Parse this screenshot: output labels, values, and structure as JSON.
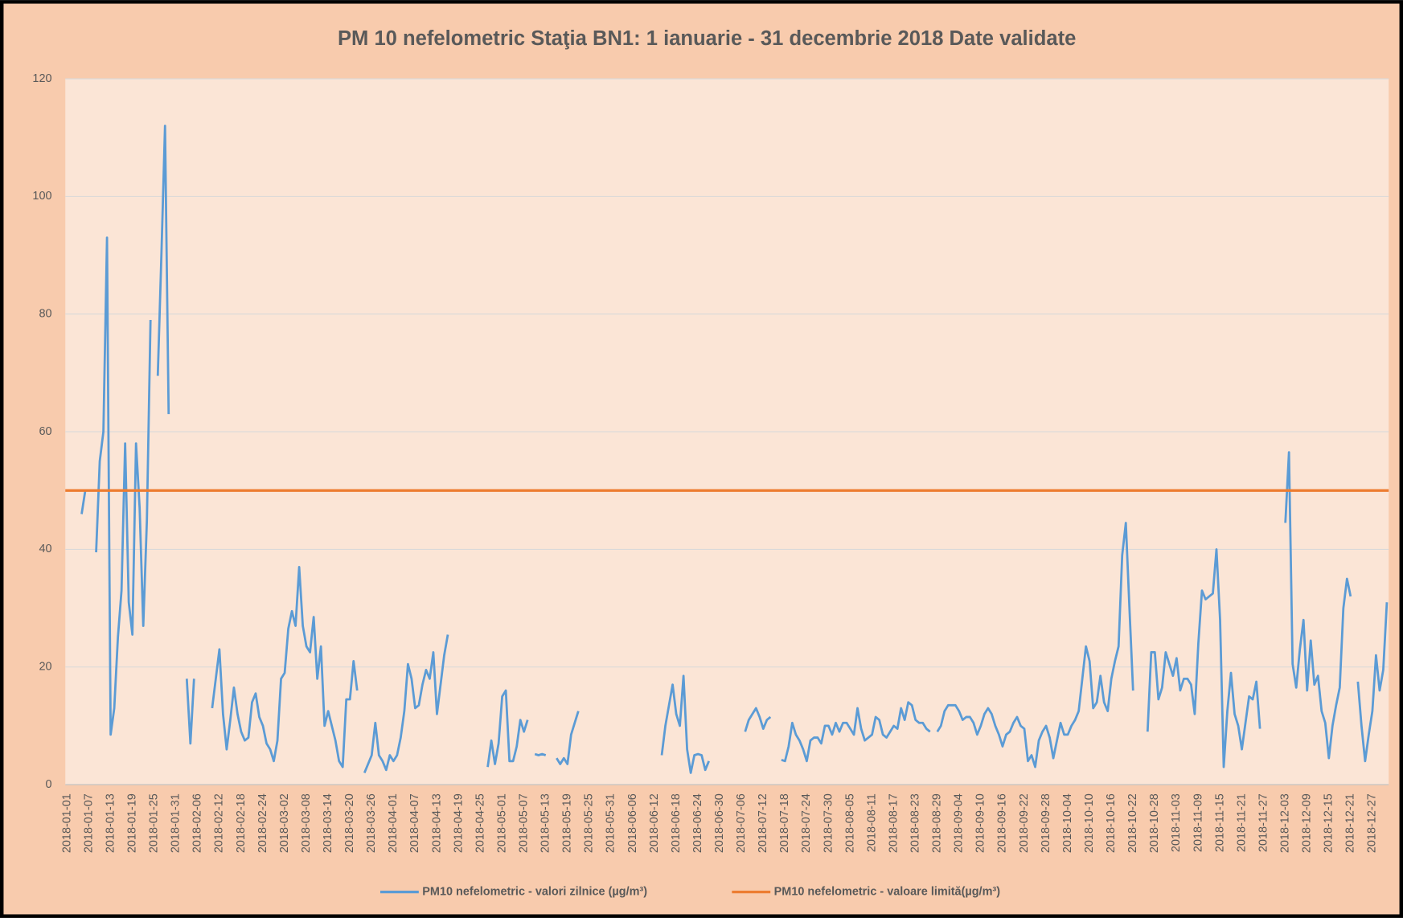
{
  "chart_data": {
    "type": "line",
    "title": "PM 10 nefelometric Staţia BN1: 1 ianuarie  - 31 decembrie 2018 Date validate",
    "categories": [
      "2018-01-01",
      null,
      null,
      null,
      null,
      null,
      "2018-01-07",
      null,
      null,
      null,
      null,
      null,
      "2018-01-13",
      null,
      null,
      null,
      null,
      null,
      "2018-01-19",
      null,
      null,
      null,
      null,
      null,
      "2018-01-25",
      null,
      null,
      null,
      null,
      null,
      "2018-01-31",
      null,
      null,
      null,
      null,
      null,
      "2018-02-06",
      null,
      null,
      null,
      null,
      null,
      "2018-02-12",
      null,
      null,
      null,
      null,
      null,
      "2018-02-18",
      null,
      null,
      null,
      null,
      null,
      "2018-02-24",
      null,
      null,
      null,
      null,
      null,
      "2018-03-02",
      null,
      null,
      null,
      null,
      null,
      "2018-03-08",
      null,
      null,
      null,
      null,
      null,
      "2018-03-14",
      null,
      null,
      null,
      null,
      null,
      "2018-03-20",
      null,
      null,
      null,
      null,
      null,
      "2018-03-26",
      null,
      null,
      null,
      null,
      null,
      "2018-04-01",
      null,
      null,
      null,
      null,
      null,
      "2018-04-07",
      null,
      null,
      null,
      null,
      null,
      "2018-04-13",
      null,
      null,
      null,
      null,
      null,
      "2018-04-19",
      null,
      null,
      null,
      null,
      null,
      "2018-04-25",
      null,
      null,
      null,
      null,
      null,
      "2018-05-01",
      null,
      null,
      null,
      null,
      null,
      "2018-05-07",
      null,
      null,
      null,
      null,
      null,
      "2018-05-13",
      null,
      null,
      null,
      null,
      null,
      "2018-05-19",
      null,
      null,
      null,
      null,
      null,
      "2018-05-25",
      null,
      null,
      null,
      null,
      null,
      "2018-05-31",
      null,
      null,
      null,
      null,
      null,
      "2018-06-06",
      null,
      null,
      null,
      null,
      null,
      "2018-06-12",
      null,
      null,
      null,
      null,
      null,
      "2018-06-18",
      null,
      null,
      null,
      null,
      null,
      "2018-06-24",
      null,
      null,
      null,
      null,
      null,
      "2018-06-30",
      null,
      null,
      null,
      null,
      null,
      "2018-07-06",
      null,
      null,
      null,
      null,
      null,
      "2018-07-12",
      null,
      null,
      null,
      null,
      null,
      "2018-07-18",
      null,
      null,
      null,
      null,
      null,
      "2018-07-24",
      null,
      null,
      null,
      null,
      null,
      "2018-07-30",
      null,
      null,
      null,
      null,
      null,
      "2018-08-05",
      null,
      null,
      null,
      null,
      null,
      "2018-08-11",
      null,
      null,
      null,
      null,
      null,
      "2018-08-17",
      null,
      null,
      null,
      null,
      null,
      "2018-08-23",
      null,
      null,
      null,
      null,
      null,
      "2018-08-29",
      null,
      null,
      null,
      null,
      null,
      "2018-09-04",
      null,
      null,
      null,
      null,
      null,
      "2018-09-10",
      null,
      null,
      null,
      null,
      null,
      "2018-09-16",
      null,
      null,
      null,
      null,
      null,
      "2018-09-22",
      null,
      null,
      null,
      null,
      null,
      "2018-09-28",
      null,
      null,
      null,
      null,
      null,
      "2018-10-04",
      null,
      null,
      null,
      null,
      null,
      "2018-10-10",
      null,
      null,
      null,
      null,
      null,
      "2018-10-16",
      null,
      null,
      null,
      null,
      null,
      "2018-10-22",
      null,
      null,
      null,
      null,
      null,
      "2018-10-28",
      null,
      null,
      null,
      null,
      null,
      "2018-11-03",
      null,
      null,
      null,
      null,
      null,
      "2018-11-09",
      null,
      null,
      null,
      null,
      null,
      "2018-11-15",
      null,
      null,
      null,
      null,
      null,
      "2018-11-21",
      null,
      null,
      null,
      null,
      null,
      "2018-11-27",
      null,
      null,
      null,
      null,
      null,
      "2018-12-03",
      null,
      null,
      null,
      null,
      null,
      "2018-12-09",
      null,
      null,
      null,
      null,
      null,
      "2018-12-15",
      null,
      null,
      null,
      null,
      null,
      "2018-12-21",
      null,
      null,
      null,
      null,
      null,
      "2018-12-27",
      null,
      null,
      null,
      null
    ],
    "series": [
      {
        "name": "PM10 nefelometric - valori zilnice (µg/m³)",
        "color": "#5b9bd5",
        "values": [
          null,
          null,
          null,
          null,
          46,
          50,
          null,
          null,
          39.5,
          55,
          60,
          93,
          8.5,
          13,
          25,
          33,
          58,
          31,
          25.5,
          58,
          47,
          27,
          45,
          79,
          null,
          69.5,
          90,
          112,
          63,
          null,
          null,
          null,
          null,
          18,
          7,
          18,
          null,
          null,
          null,
          null,
          13,
          18,
          23,
          12,
          6,
          11,
          16.5,
          12,
          9,
          7.5,
          8,
          14,
          15.5,
          11.5,
          10,
          7,
          6,
          4,
          7.5,
          18,
          19,
          26.5,
          29.5,
          27,
          37,
          27,
          23.5,
          22.5,
          28.5,
          18,
          23.5,
          10,
          12.5,
          10,
          7.5,
          4,
          3,
          14.5,
          14.5,
          21,
          16,
          null,
          2,
          3.5,
          5,
          10.5,
          5,
          4,
          2.5,
          5,
          4,
          5,
          8,
          12.5,
          20.5,
          18,
          13,
          13.5,
          17,
          19.5,
          18,
          22.5,
          12,
          17,
          22,
          25.5,
          null,
          null,
          null,
          null,
          null,
          null,
          null,
          null,
          null,
          null,
          3,
          7.5,
          3.5,
          7,
          15,
          16,
          4,
          4,
          6.5,
          11,
          9,
          11,
          null,
          5.2,
          5,
          5.2,
          5,
          null,
          null,
          4.5,
          3.5,
          4.5,
          3.5,
          8.5,
          10.5,
          12.5,
          null,
          null,
          null,
          null,
          null,
          null,
          null,
          null,
          null,
          null,
          null,
          null,
          null,
          null,
          null,
          null,
          null,
          null,
          null,
          null,
          null,
          null,
          5,
          10,
          13.5,
          17,
          12,
          10,
          18.5,
          6,
          2,
          5,
          5.2,
          5,
          2.5,
          4,
          null,
          null,
          null,
          null,
          null,
          null,
          null,
          null,
          null,
          9,
          11,
          12,
          13,
          11.5,
          9.5,
          11,
          11.5,
          null,
          null,
          4.2,
          4,
          6.5,
          10.5,
          8.5,
          7.5,
          6,
          4,
          7.5,
          8,
          8,
          7,
          10,
          10,
          8.5,
          10.5,
          9,
          10.5,
          10.5,
          9.5,
          8.5,
          13,
          9.5,
          7.5,
          8,
          8.5,
          11.5,
          11,
          8.5,
          8,
          9,
          10,
          9.5,
          13,
          11,
          14,
          13.5,
          11,
          10.5,
          10.5,
          9.5,
          9,
          null,
          9,
          10,
          12.5,
          13.5,
          13.5,
          13.5,
          12.5,
          11,
          11.5,
          11.5,
          10.5,
          8.5,
          10,
          12,
          13,
          12,
          10,
          8.5,
          6.5,
          8.5,
          9,
          10.5,
          11.5,
          10,
          9.5,
          4,
          5,
          3,
          7.5,
          9,
          10,
          8,
          4.5,
          7.5,
          10.5,
          8.5,
          8.5,
          10,
          11,
          12.5,
          18,
          23.5,
          21,
          13,
          14,
          18.5,
          14,
          12.5,
          18,
          21,
          23.5,
          39,
          44.5,
          30,
          16,
          null,
          null,
          null,
          9,
          22.5,
          22.5,
          14.5,
          16.5,
          22.5,
          20.5,
          18.5,
          21.5,
          16,
          18,
          18,
          17,
          12,
          24,
          33,
          31.5,
          32,
          32.5,
          40,
          28,
          3,
          12.5,
          19,
          12,
          10,
          6,
          10.5,
          15,
          14.5,
          17.5,
          9.5,
          null,
          null,
          null,
          null,
          null,
          null,
          44.5,
          56.5,
          20.5,
          16.5,
          23,
          28,
          16,
          24.5,
          17,
          18.5,
          12.5,
          10.5,
          4.5,
          10,
          13.5,
          16.5,
          30,
          35,
          32,
          null,
          17.5,
          10,
          4,
          8.5,
          12.5,
          22,
          16,
          19.5,
          31
        ]
      }
    ],
    "limit": {
      "name": "PM10 nefelometric - valoare limită(µg/m³)",
      "color": "#ed7d31",
      "value": 50
    },
    "ylim": [
      0,
      120
    ],
    "yticks": [
      0,
      20,
      40,
      60,
      80,
      100,
      120
    ],
    "grid": true
  }
}
